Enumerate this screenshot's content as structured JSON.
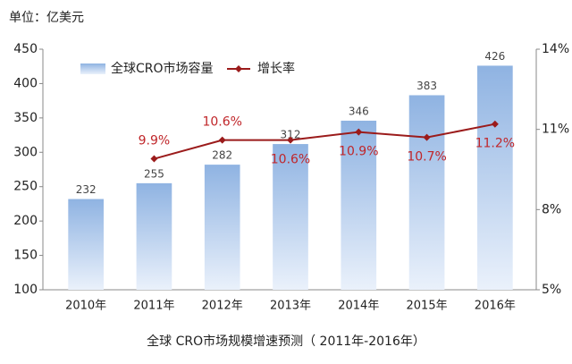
{
  "chart_data": {
    "type": "bar_line",
    "unit_label": "单位：亿美元",
    "title": "全球 CRO市场规模增速预测（ 2011年-2016年）",
    "categories": [
      "2010年",
      "2011年",
      "2012年",
      "2013年",
      "2014年",
      "2015年",
      "2016年"
    ],
    "series": [
      {
        "name": "全球CRO市场容量",
        "type": "bar",
        "color": "#8fb3e2",
        "values": [
          232,
          255,
          282,
          312,
          346,
          383,
          426
        ]
      },
      {
        "name": "增长率",
        "type": "line",
        "axis": "y2",
        "color": "#9b1b1b",
        "values": [
          null,
          9.9,
          10.6,
          10.6,
          10.9,
          10.7,
          11.2
        ],
        "value_labels": [
          null,
          "9.9%",
          "10.6%",
          "10.6%",
          "10.9%",
          "10.7%",
          "11.2%"
        ]
      }
    ],
    "ylim": [
      100,
      450
    ],
    "yticks": [
      100,
      150,
      200,
      250,
      300,
      350,
      400,
      450
    ],
    "y2lim": [
      5,
      14
    ],
    "y2ticks": [
      {
        "value": 5,
        "label": "5%"
      },
      {
        "value": 8,
        "label": "8%"
      },
      {
        "value": 11,
        "label": "11%"
      },
      {
        "value": 14,
        "label": "14%"
      }
    ],
    "grid": false
  }
}
